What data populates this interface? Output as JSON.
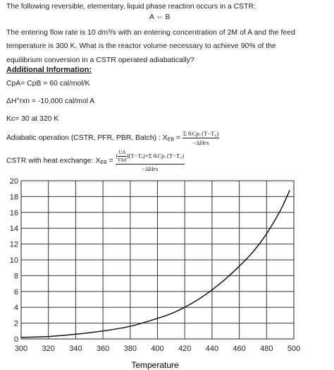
{
  "problem": {
    "intro": "The following reversible, elementary, liquid phase reaction occurs in a CSTR:",
    "reaction": {
      "reactant": "A",
      "arrow": "⇔",
      "product": "B"
    },
    "p_line1": "The entering flow rate is 10 dm³/s with an entering concentration of 2M of A and the feed",
    "p_line2": "temperature is 300 K. What is the reactor volume necessary to achieve 90% of the",
    "p_line3": "equilibrium conversion in a CSTR operated adiabatically?"
  },
  "additional": {
    "heading": "Additional Information:",
    "cp_line": "CpA= CpB = 60 cal/mol/K",
    "dh_line": "ΔH°rxn = -10,000 cal/mol A",
    "kc_line": "Kc= 30 at 320 K"
  },
  "equations": {
    "adiabatic_label": "Adiabatic operation (CSTR, PFR, PBR, Batch) : X",
    "adiabatic_sub": "EB",
    "adiabatic_num": "Σ θᵢCpᵢ (T−T₀)",
    "adiabatic_den": "−ΔHrx",
    "hx_label": "CSTR with heat exchange: X",
    "hx_sub": "EB",
    "hx_num_frac_top": "UA",
    "hx_num_frac_bot": "FA0",
    "hx_num_rest": "(T−Tₐ)+Σ θᵢCpᵢ (T−T₀)",
    "hx_den": "−ΔHrx"
  },
  "chart_data": {
    "type": "line",
    "xlabel": "Temperature",
    "ylabel": "",
    "xlim": [
      300,
      500
    ],
    "ylim": [
      0,
      20
    ],
    "x_ticks": [
      "300",
      "320",
      "340",
      "360",
      "380",
      "400",
      "420",
      "440",
      "460",
      "480",
      "500"
    ],
    "y_ticks": [
      "0",
      "2",
      "4",
      "6",
      "8",
      "10",
      "12",
      "14",
      "16",
      "18",
      "20"
    ],
    "grid": true,
    "series": [
      {
        "x": [
          300,
          320,
          340,
          360,
          380,
          400,
          410,
          420,
          430,
          440,
          450,
          460,
          470,
          480,
          490,
          497
        ],
        "y": [
          0.2,
          0.3,
          0.6,
          1.0,
          1.6,
          2.6,
          3.2,
          4.0,
          5.0,
          6.2,
          7.6,
          9.2,
          11.0,
          13.3,
          16.2,
          18.8
        ]
      }
    ],
    "line_color": "#111111"
  }
}
